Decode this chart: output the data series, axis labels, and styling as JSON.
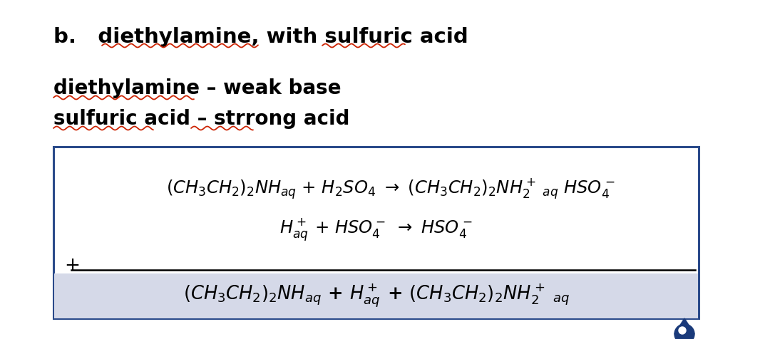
{
  "bg_color": "#ffffff",
  "text_color": "#000000",
  "box_color": "#2a4a8a",
  "highlight_color": "#d5d9e8",
  "underline_color": "#cc2200",
  "drop_color": "#1a3a7a",
  "title_text": "b.   diethylamine, with sulfuric acid",
  "line1_text": "diethylamine – weak base",
  "line2_text": "sulfuric acid – strrong acid",
  "eq1_text": "$(CH_3CH_2)_2NH_{aq}$ + $H_2SO_4$ $\\rightarrow$ $(CH_3CH_2)_2NH_2^+$ $_{\\!aq}$ $HSO_4^-$",
  "eq2_text": "$H_{aq}^+$ + $HSO_4^-$ $\\rightarrow$ $HSO_4^-$",
  "eq3_text": "$(CH_3CH_2)_2NH_{aq}$ + $H_{aq}^+$ + $(CH_3CH_2)_2NH_2^+$ $_{\\!aq}$",
  "title_fontsize": 21,
  "body_fontsize": 20,
  "eq_fontsize": 17.5,
  "eq3_fontsize": 18.5
}
